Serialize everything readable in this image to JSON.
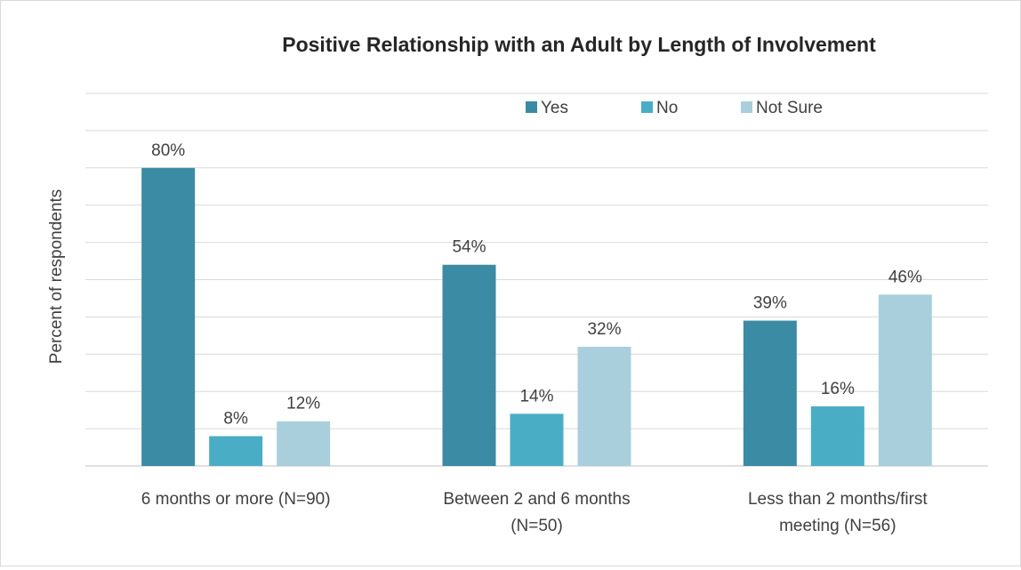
{
  "chart_data": {
    "type": "bar",
    "title": "Positive Relationship with an Adult by Length of Involvement",
    "ylabel": "Percent of respondents",
    "xlabel": "",
    "ylim": [
      0,
      100
    ],
    "grid": true,
    "legend_position": "top-right",
    "categories": [
      [
        "6 months or more (N=90)"
      ],
      [
        "Between 2 and 6 months",
        "(N=50)"
      ],
      [
        "Less than 2 months/first",
        "meeting (N=56)"
      ]
    ],
    "series": [
      {
        "name": "Yes",
        "color": "#3a8ba3",
        "values": [
          80,
          54,
          39
        ],
        "labels": [
          "80%",
          "54%",
          "39%"
        ]
      },
      {
        "name": "No",
        "color": "#4aadc6",
        "values": [
          8,
          14,
          16
        ],
        "labels": [
          "8%",
          "14%",
          "16%"
        ]
      },
      {
        "name": "Not Sure",
        "color": "#a9cfdc",
        "values": [
          12,
          32,
          46
        ],
        "labels": [
          "12%",
          "32%",
          "46%"
        ]
      }
    ]
  }
}
